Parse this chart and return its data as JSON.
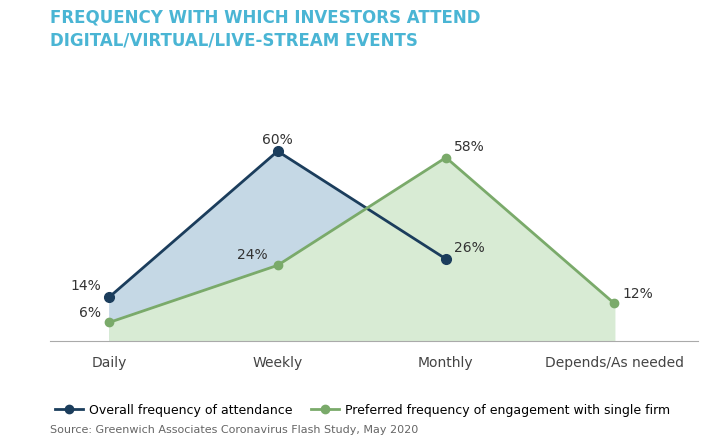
{
  "title_line1": "FREQUENCY WITH WHICH INVESTORS ATTEND",
  "title_line2": "DIGITAL/VIRTUAL/LIVE-STREAM EVENTS",
  "categories": [
    "Daily",
    "Weekly",
    "Monthly",
    "Depends/As needed"
  ],
  "series1_label": "Overall frequency of attendance",
  "series1_x": [
    0,
    1,
    2
  ],
  "series1_y": [
    14,
    60,
    26
  ],
  "series1_color": "#1b3d5c",
  "series1_fill_color": "#c5d8e5",
  "series2_label": "Preferred frequency of engagement with single firm",
  "series2_x": [
    0,
    1,
    2,
    3
  ],
  "series2_y": [
    6,
    24,
    58,
    12
  ],
  "series2_color": "#7aaa6a",
  "series2_fill_color": "#d8ebd4",
  "source": "Source: Greenwich Associates Coronavirus Flash Study, May 2020",
  "title_color": "#4ab5d4",
  "background_color": "#ffffff",
  "title_fontsize": 12,
  "tick_fontsize": 10,
  "label_fontsize": 10,
  "source_fontsize": 8,
  "legend_fontsize": 9,
  "xlim": [
    -0.35,
    3.5
  ],
  "ylim": [
    0,
    72
  ]
}
